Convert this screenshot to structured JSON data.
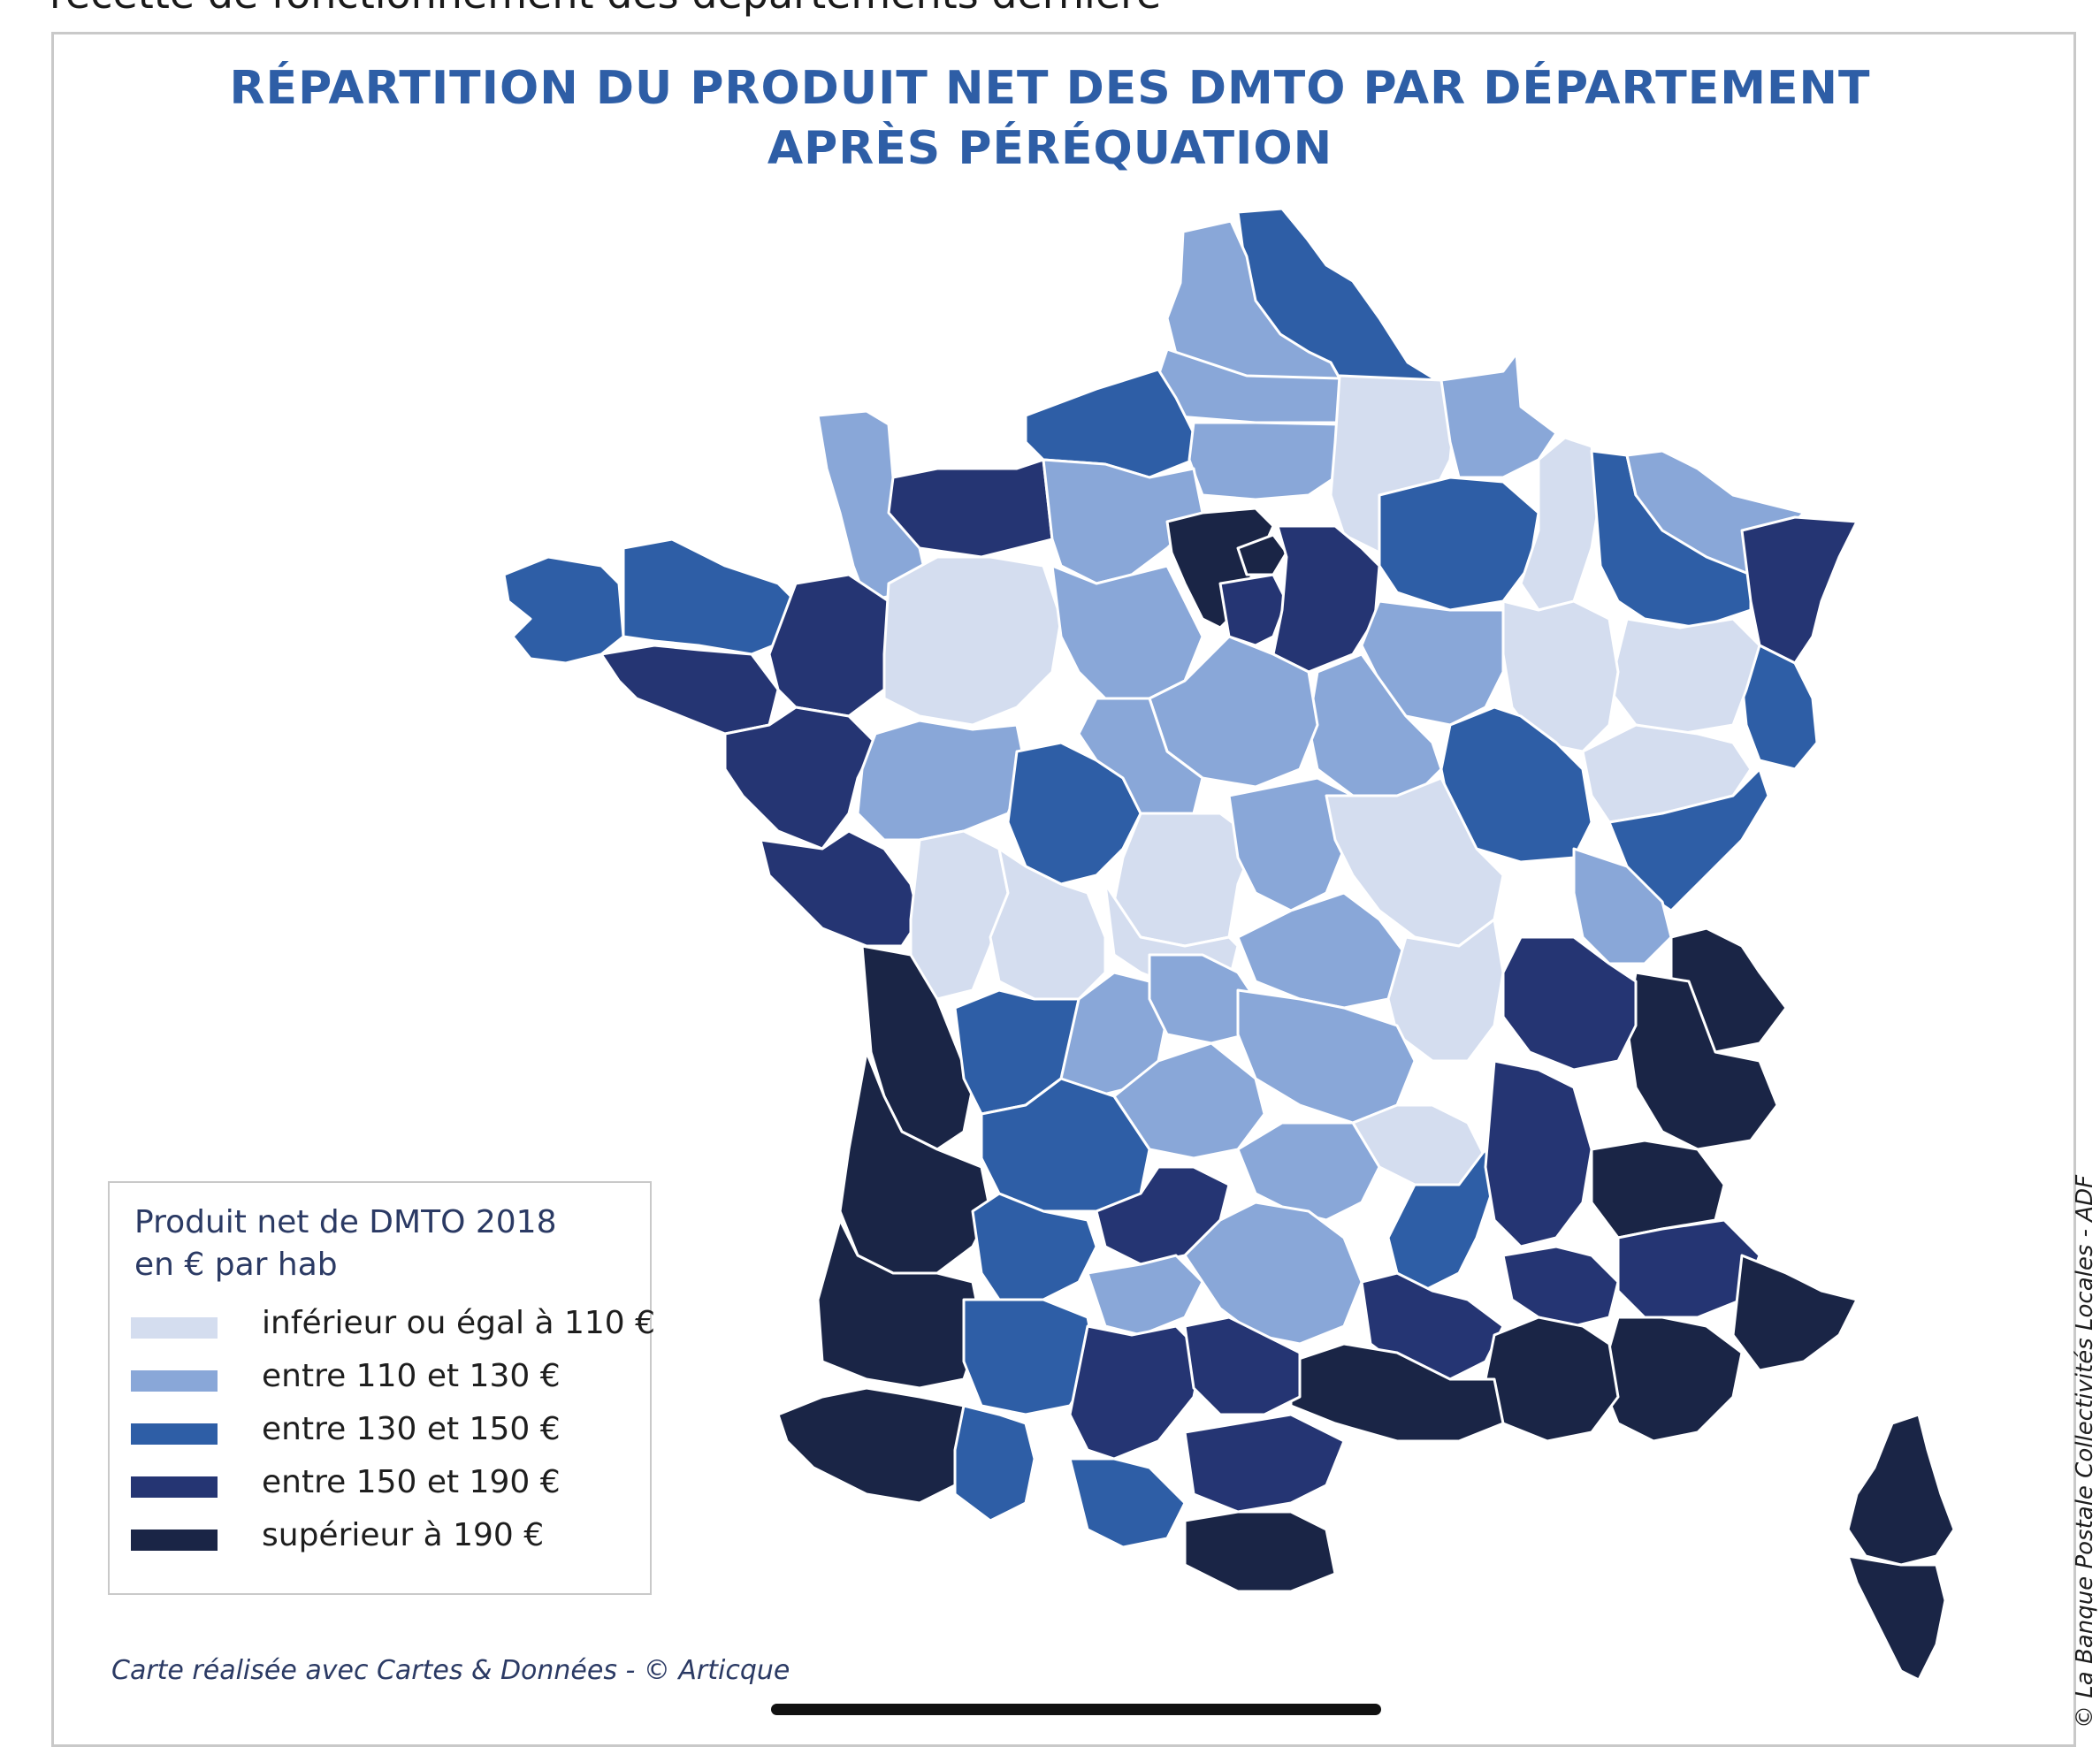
{
  "page": {
    "top_cut_text": "recette de fonctionnement des départements dernière",
    "title_line1": "RÉPARTITION DU PRODUIT NET DES DMTO PAR DÉPARTEMENT",
    "title_line2": "APRÈS PÉRÉQUATION",
    "credit": "Carte réalisée avec Cartes & Données - © Articque",
    "source": "© La Banque Postale Collectivités Locales - ADF"
  },
  "legend": {
    "title_line1": "Produit net de DMTO 2018",
    "title_line2": "en € par hab",
    "classes": [
      {
        "label": "inférieur ou égal à 110 €",
        "color": "#d4ddef"
      },
      {
        "label": "entre 110 et 130 €",
        "color": "#89a7d8"
      },
      {
        "label": "entre 130 et 150 €",
        "color": "#2e5ea6"
      },
      {
        "label": "entre 150 et 190 €",
        "color": "#253573"
      },
      {
        "label": "supérieur à 190 €",
        "color": "#1a2546"
      }
    ]
  },
  "colors": {
    "title": "#2e5ea6",
    "border": "#ffffff",
    "frame": "#c9c9c9"
  }
}
